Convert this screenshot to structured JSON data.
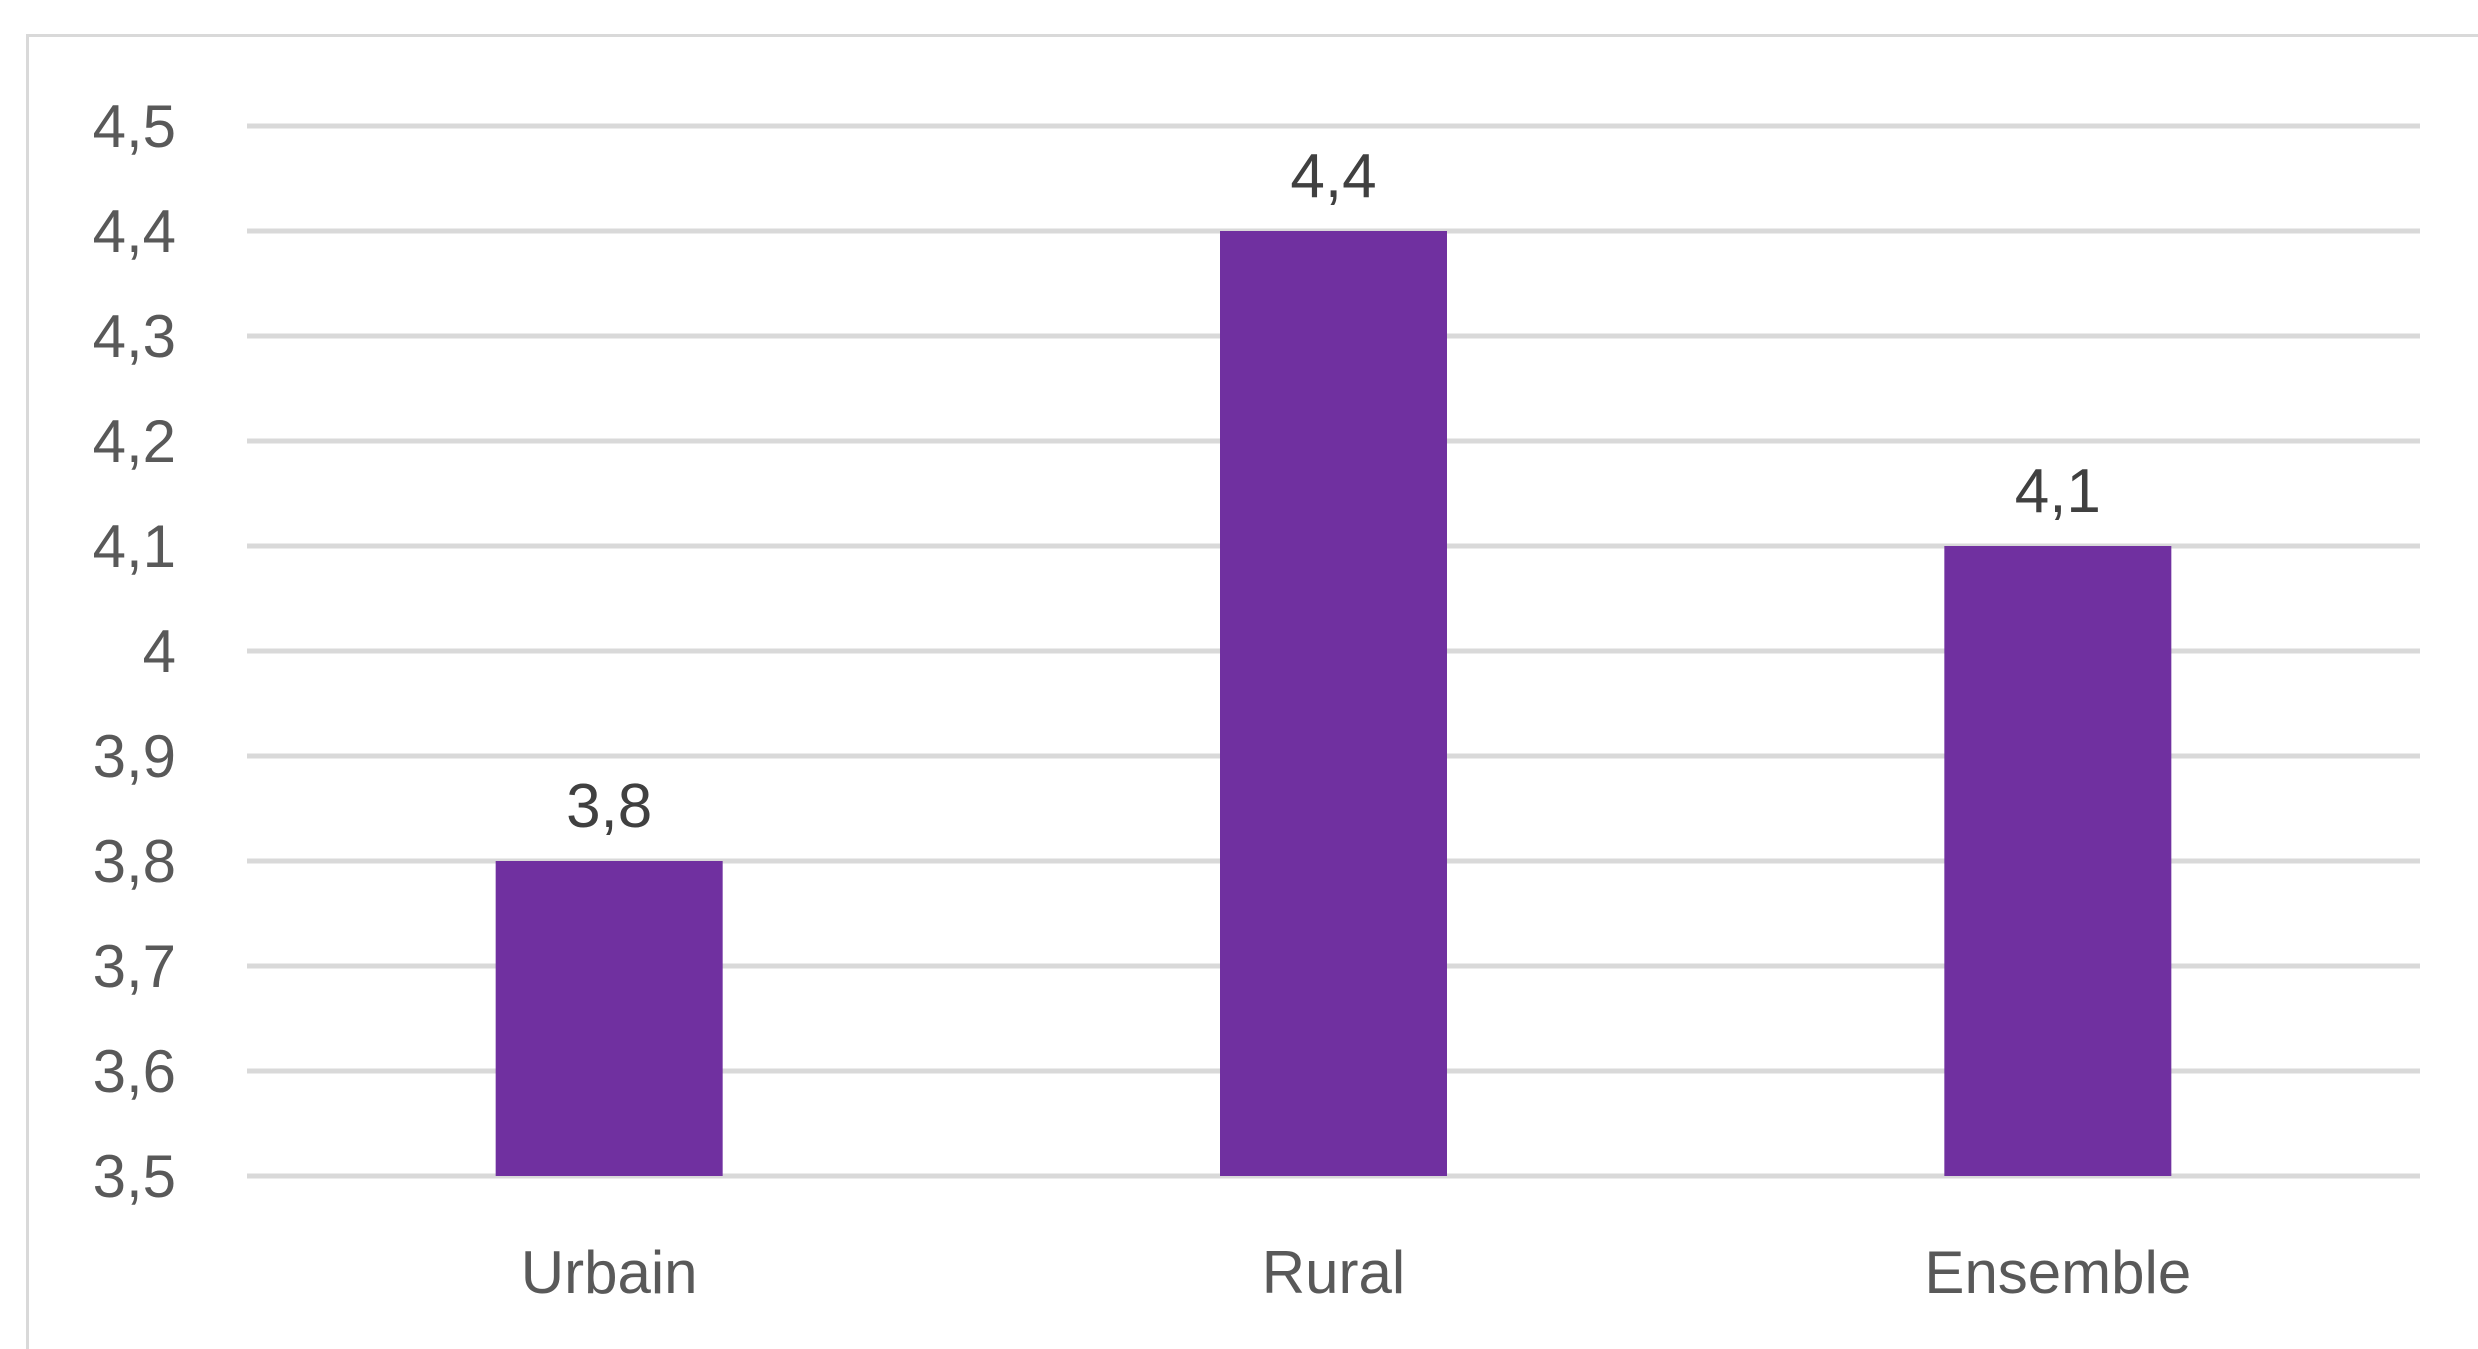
{
  "chart_data": {
    "type": "bar",
    "categories": [
      "Urbain",
      "Rural",
      "Ensemble"
    ],
    "values": [
      3.8,
      4.4,
      4.1
    ],
    "data_labels": [
      "3,8",
      "4,4",
      "4,1"
    ],
    "ylim": [
      3.5,
      4.5
    ],
    "y_ticks": [
      3.5,
      3.6,
      3.7,
      3.8,
      3.9,
      4.0,
      4.1,
      4.2,
      4.3,
      4.4,
      4.5
    ],
    "y_tick_labels": [
      "3,5",
      "3,6",
      "3,7",
      "3,8",
      "3,9",
      "4",
      "4,1",
      "4,2",
      "4,3",
      "4,4",
      "4,5"
    ],
    "title": "",
    "xlabel": "",
    "ylabel": "",
    "grid": true,
    "legend": "none",
    "colors": {
      "bar": "#7030a0",
      "grid": "#d9d9d9"
    }
  }
}
